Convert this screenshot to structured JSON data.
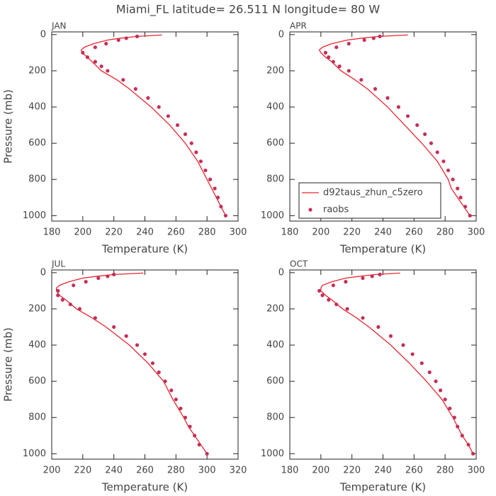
{
  "title": "Miami_FL   latitude= 26.511 N longitude= 80 W",
  "chart_data": [
    {
      "type": "line",
      "title": "JAN",
      "xlabel": "Temperature (K)",
      "ylabel": "Pressure (mb)",
      "xlim": [
        180,
        300
      ],
      "xticks": [
        180,
        200,
        220,
        240,
        260,
        280,
        300
      ],
      "ylim": [
        1030,
        -15
      ],
      "yticks": [
        0,
        200,
        400,
        600,
        800,
        1000
      ],
      "series": [
        {
          "name": "d92taus_zhun_c5zero",
          "type": "line",
          "color": "#e8262e",
          "x": [
            251,
            235,
            224,
            216,
            207,
            201,
            199,
            199.5,
            203,
            206,
            212,
            222,
            230,
            244,
            256,
            266,
            274,
            280,
            283,
            286,
            289,
            292
          ],
          "values": [
            2,
            10,
            20,
            30,
            50,
            70,
            85,
            100,
            125,
            150,
            200,
            250,
            300,
            400,
            500,
            600,
            700,
            800,
            850,
            900,
            950,
            1000
          ]
        },
        {
          "name": "raobs",
          "type": "scatter",
          "color": "#c2315a",
          "x": [
            235,
            228,
            223,
            215,
            208,
            200,
            203,
            208,
            212,
            216,
            226,
            234,
            242,
            249,
            255,
            261,
            266,
            270,
            273,
            276,
            279,
            282,
            285,
            287,
            289,
            292
          ],
          "values": [
            10,
            20,
            30,
            50,
            70,
            100,
            125,
            150,
            175,
            200,
            250,
            300,
            350,
            400,
            450,
            500,
            550,
            600,
            650,
            700,
            750,
            800,
            850,
            900,
            950,
            1000
          ]
        }
      ]
    },
    {
      "type": "line",
      "title": "APR",
      "xlabel": "Temperature (K)",
      "xlim": [
        180,
        300
      ],
      "xticks": [
        180,
        200,
        220,
        240,
        260,
        280,
        300
      ],
      "ylim": [
        1030,
        -15
      ],
      "yticks": [
        0,
        200,
        400,
        600,
        800,
        1000
      ],
      "legend": "lower left",
      "series": [
        {
          "name": "d92taus_zhun_c5zero",
          "type": "line",
          "color": "#e8262e",
          "x": [
            256,
            237,
            226,
            217,
            207,
            201,
            199,
            200,
            203,
            207,
            213,
            222,
            230,
            243,
            254,
            265,
            275,
            282,
            284,
            288,
            292,
            296
          ],
          "values": [
            2,
            10,
            20,
            30,
            50,
            70,
            85,
            100,
            125,
            150,
            200,
            250,
            300,
            400,
            500,
            600,
            700,
            800,
            850,
            900,
            950,
            1000
          ]
        },
        {
          "name": "raobs",
          "type": "scatter",
          "color": "#c2315a",
          "x": [
            238,
            234,
            228,
            218,
            210,
            203,
            205,
            208,
            212,
            218,
            226,
            235,
            243,
            250,
            256,
            262,
            267,
            271,
            275,
            279,
            282,
            285,
            288,
            290,
            293,
            296
          ],
          "values": [
            10,
            20,
            30,
            50,
            70,
            100,
            125,
            150,
            175,
            200,
            250,
            300,
            350,
            400,
            450,
            500,
            550,
            600,
            650,
            700,
            750,
            800,
            850,
            900,
            950,
            1000
          ]
        }
      ]
    },
    {
      "type": "line",
      "title": "JUL",
      "xlabel": "Temperature (K)",
      "ylabel": "Pressure (mb)",
      "xlim": [
        200,
        320
      ],
      "xticks": [
        200,
        220,
        240,
        260,
        280,
        300,
        320
      ],
      "ylim": [
        1030,
        -15
      ],
      "yticks": [
        0,
        200,
        400,
        600,
        800,
        1000
      ],
      "series": [
        {
          "name": "d92taus_zhun_c5zero",
          "type": "line",
          "color": "#e8262e",
          "x": [
            259,
            240,
            229,
            220,
            211,
            205,
            203,
            203,
            205,
            209,
            216,
            226,
            235,
            250,
            262,
            272,
            278,
            285,
            288,
            292,
            296,
            300
          ],
          "values": [
            2,
            10,
            20,
            30,
            50,
            70,
            85,
            100,
            125,
            150,
            200,
            250,
            300,
            400,
            500,
            600,
            700,
            800,
            850,
            900,
            950,
            1000
          ]
        },
        {
          "name": "raobs",
          "type": "scatter",
          "color": "#c2315a",
          "x": [
            240,
            236,
            230,
            222,
            214,
            204,
            204,
            207,
            212,
            218,
            228,
            240,
            248,
            255,
            260,
            265,
            269,
            273,
            277,
            280,
            283,
            286,
            289,
            292,
            295,
            300
          ],
          "values": [
            10,
            20,
            30,
            50,
            70,
            100,
            125,
            150,
            175,
            200,
            250,
            300,
            350,
            400,
            450,
            500,
            550,
            600,
            650,
            700,
            750,
            800,
            850,
            900,
            950,
            1000
          ]
        }
      ]
    },
    {
      "type": "line",
      "title": "OCT",
      "xlabel": "Temperature (K)",
      "xlim": [
        180,
        300
      ],
      "xticks": [
        180,
        200,
        220,
        240,
        260,
        280,
        300
      ],
      "ylim": [
        1030,
        -15
      ],
      "yticks": [
        0,
        200,
        400,
        600,
        800,
        1000
      ],
      "series": [
        {
          "name": "d92taus_zhun_c5zero",
          "type": "line",
          "color": "#e8262e",
          "x": [
            251,
            235,
            225,
            216,
            207,
            201,
            200,
            200,
            203,
            207,
            214,
            223,
            231,
            245,
            257,
            268,
            278,
            285,
            288,
            291,
            295,
            298
          ],
          "values": [
            2,
            10,
            20,
            30,
            50,
            70,
            85,
            100,
            125,
            150,
            200,
            250,
            300,
            400,
            500,
            600,
            700,
            800,
            850,
            900,
            950,
            1000
          ]
        },
        {
          "name": "raobs",
          "type": "scatter",
          "color": "#c2315a",
          "x": [
            238,
            233,
            227,
            216,
            208,
            199,
            201,
            205,
            210,
            217,
            227,
            237,
            245,
            253,
            259,
            265,
            270,
            274,
            277,
            280,
            283,
            286,
            288,
            291,
            295,
            298
          ],
          "values": [
            10,
            20,
            30,
            50,
            70,
            100,
            125,
            150,
            175,
            200,
            250,
            300,
            350,
            400,
            450,
            500,
            550,
            600,
            650,
            700,
            750,
            800,
            850,
            900,
            950,
            1000
          ]
        }
      ]
    }
  ]
}
